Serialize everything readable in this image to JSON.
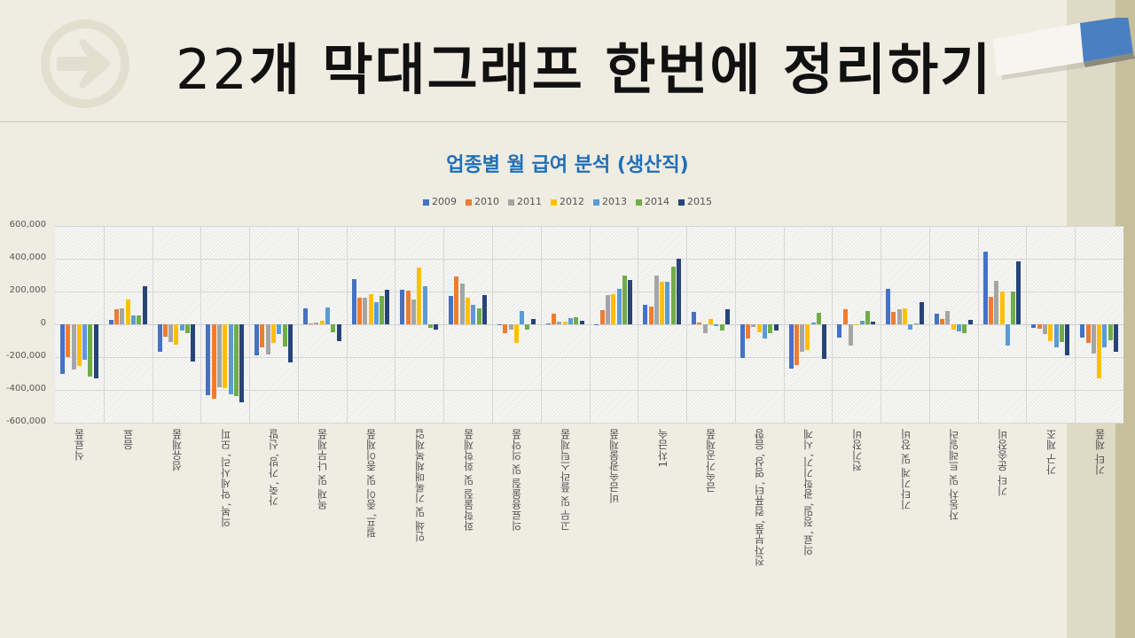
{
  "slide": {
    "title": "22개 막대그래프 한번에 정리하기",
    "title_number": "22",
    "title_rest": "개 막대그래프 한번에 정리하기",
    "icons": [
      "arrow-circle-icon",
      "eraser-icon"
    ]
  },
  "colors": {
    "title_blue": "#1f6fb8",
    "background": "#efece2",
    "series": [
      "#4472c4",
      "#ed7d31",
      "#a5a5a5",
      "#ffc000",
      "#5b9bd5",
      "#70ad47",
      "#264478"
    ]
  },
  "chart_data": {
    "type": "bar",
    "title": "업종별 월 급여 분석 (생산직)",
    "xlabel": "",
    "ylabel": "",
    "ylim": [
      -600000,
      600000
    ],
    "yticks": [
      "600,000",
      "400,000",
      "200,000",
      "0",
      "-200,000",
      "-400,000",
      "-600,000"
    ],
    "ytick_values": [
      600000,
      400000,
      200000,
      0,
      -200000,
      -400000,
      -600000
    ],
    "grid": true,
    "legend_position": "top",
    "categories": [
      "식료품",
      "음료",
      "섬유제품",
      "의복, 악세사리, 모피",
      "가죽, 가방, 신발",
      "목재 및 나무제품",
      "펄프, 종이 및 종이제품",
      "인쇄 및 기록매체복제업",
      "화학물질 및 화학제품",
      "의료용물질 및 의약품",
      "고무 및 플라스틱제품",
      "비금속광물제품",
      "1차금속",
      "금속가공제품",
      "전자부품, 컴퓨터, 영상, 음향",
      "의료, 정밀, 광학기기, 시계",
      "전기장비",
      "기타기계 및 장비",
      "자동차 및 트레일러",
      "기타 운송장비",
      "가구 제조",
      "기타 제품"
    ],
    "series": [
      {
        "name": "2009",
        "values": [
          -300000,
          25000,
          -170000,
          -430000,
          -190000,
          95000,
          275000,
          210000,
          175000,
          0,
          5000,
          0,
          120000,
          75000,
          -205000,
          -270000,
          -80000,
          215000,
          65000,
          445000,
          -20000,
          -80000
        ]
      },
      {
        "name": "2010",
        "values": [
          -200000,
          90000,
          -75000,
          -455000,
          -140000,
          5000,
          160000,
          205000,
          290000,
          -55000,
          65000,
          85000,
          110000,
          10000,
          -85000,
          -250000,
          90000,
          75000,
          35000,
          165000,
          -25000,
          -115000
        ]
      },
      {
        "name": "2011",
        "values": [
          -275000,
          95000,
          -110000,
          -385000,
          -185000,
          10000,
          160000,
          150000,
          250000,
          -30000,
          15000,
          180000,
          300000,
          -55000,
          -15000,
          -165000,
          -130000,
          90000,
          80000,
          265000,
          -60000,
          -180000
        ]
      },
      {
        "name": "2012",
        "values": [
          -255000,
          150000,
          -125000,
          -390000,
          -115000,
          20000,
          185000,
          345000,
          160000,
          -115000,
          15000,
          185000,
          260000,
          30000,
          -50000,
          -155000,
          0,
          100000,
          -30000,
          200000,
          -105000,
          -330000
        ]
      },
      {
        "name": "2013",
        "values": [
          -215000,
          55000,
          -40000,
          -425000,
          -60000,
          105000,
          135000,
          235000,
          120000,
          80000,
          40000,
          215000,
          260000,
          -10000,
          -85000,
          10000,
          20000,
          -30000,
          -45000,
          -130000,
          -140000,
          -140000
        ]
      },
      {
        "name": "2014",
        "values": [
          -320000,
          55000,
          -55000,
          -440000,
          -135000,
          -50000,
          175000,
          -20000,
          100000,
          -30000,
          45000,
          295000,
          350000,
          -40000,
          -55000,
          70000,
          80000,
          5000,
          -55000,
          200000,
          -110000,
          -95000
        ]
      },
      {
        "name": "2015",
        "values": [
          -330000,
          230000,
          -225000,
          -475000,
          -235000,
          -105000,
          210000,
          -30000,
          180000,
          30000,
          20000,
          270000,
          400000,
          90000,
          -40000,
          -210000,
          15000,
          135000,
          25000,
          385000,
          -190000,
          -170000
        ]
      }
    ]
  }
}
